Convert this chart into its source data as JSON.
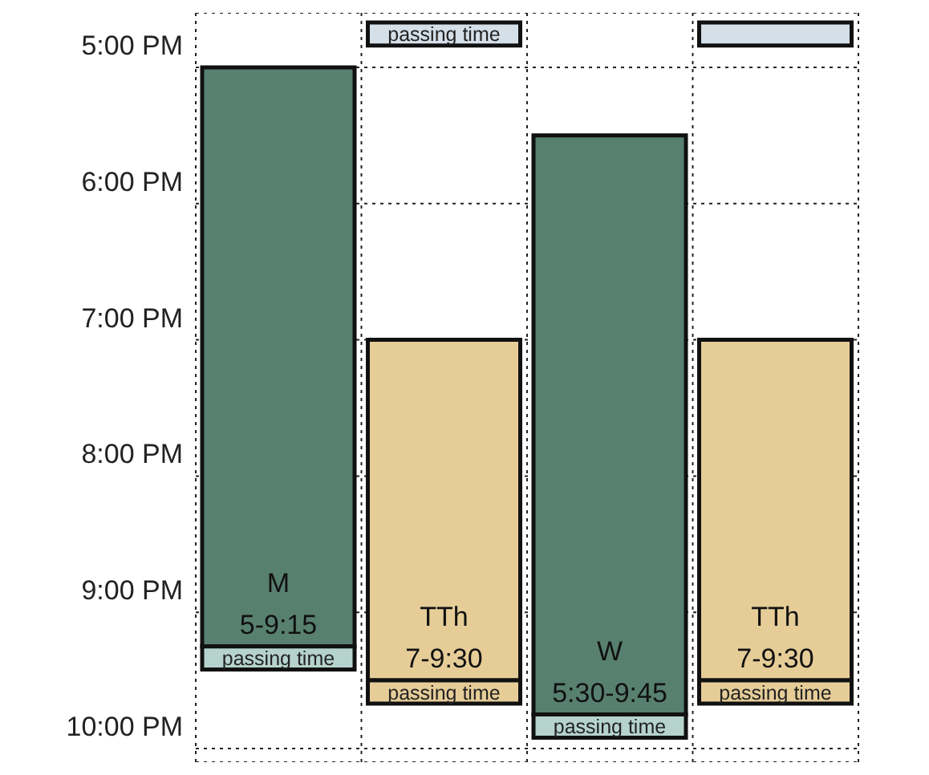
{
  "chart_data": {
    "type": "bar",
    "categories": [
      null,
      null,
      null,
      null
    ],
    "ylim": [
      22.1,
      16.6
    ],
    "yticks": [
      {
        "value": 17,
        "label": "5:00 PM"
      },
      {
        "value": 18,
        "label": "6:00 PM"
      },
      {
        "value": 19,
        "label": "7:00 PM"
      },
      {
        "value": 20,
        "label": "8:00 PM"
      },
      {
        "value": 21,
        "label": "9:00 PM"
      },
      {
        "value": 22,
        "label": "10:00 PM"
      }
    ],
    "tick_labels": "y",
    "grid": true,
    "series": [
      {
        "base": [
          17,
          19,
          17.5,
          19
        ],
        "values": [
          4.25,
          2.5,
          4.25,
          2.5
        ],
        "colors": [
          "#588070",
          "#e6cd98",
          "#588070",
          "#e6cd98"
        ],
        "value_labels": [
          "M\n5-9:15",
          "TTh\n7-9:30",
          "W\n5:30-9:45",
          "TTh\n7-9:30"
        ]
      },
      {
        "base": [
          21.25,
          21.5,
          21.75,
          21.5
        ],
        "values": [
          0.17,
          0.17,
          0.17,
          0.17
        ],
        "colors": [
          "#b5d3cc",
          "#e6cd98",
          "#b5d3cc",
          "#e6cd98"
        ],
        "value_labels": [
          "passing time",
          "passing time",
          "passing time",
          "passing time"
        ]
      },
      {
        "base": [
          null,
          16.67,
          null,
          16.67
        ],
        "values": [
          null,
          0.17,
          null,
          0.17
        ],
        "colors": [
          "#d4dfe8",
          "#d4dfe8",
          "#d4dfe8",
          "#d4dfe8"
        ],
        "value_labels": [
          null,
          "passing time",
          null,
          null
        ]
      }
    ]
  }
}
